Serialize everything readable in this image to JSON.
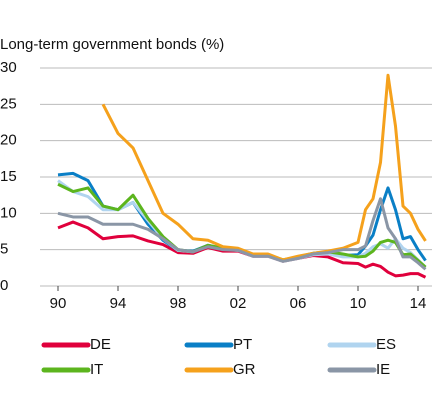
{
  "chart_data": {
    "type": "line",
    "title": "Long-term government bonds (%)",
    "x": [
      1990,
      1991,
      1992,
      1993,
      1994,
      1995,
      1996,
      1997,
      1998,
      1999,
      2000,
      2001,
      2002,
      2003,
      2004,
      2005,
      2006,
      2007,
      2008,
      2009,
      2010,
      2010.5,
      2011,
      2011.5,
      2012,
      2012.5,
      2013,
      2013.5,
      2014,
      2014.5
    ],
    "series": [
      {
        "name": "DE",
        "color": "#e0003c",
        "values": [
          8,
          8.8,
          8,
          6.5,
          6.8,
          6.9,
          6.2,
          5.7,
          4.6,
          4.5,
          5.3,
          4.8,
          4.8,
          4.1,
          4.1,
          3.4,
          3.8,
          4.2,
          4.0,
          3.2,
          3.1,
          2.6,
          3.0,
          2.7,
          1.9,
          1.4,
          1.5,
          1.7,
          1.7,
          1.2
        ]
      },
      {
        "name": "PT",
        "color": "#0a7fc6",
        "values": [
          15.3,
          15.5,
          14.5,
          11,
          10.5,
          11.5,
          8.5,
          6.3,
          4.9,
          4.8,
          5.6,
          5.2,
          5.0,
          4.2,
          4.2,
          3.5,
          4.0,
          4.4,
          4.5,
          4.2,
          4.3,
          5.5,
          7.0,
          10.5,
          13.5,
          10.5,
          6.5,
          6.8,
          5.0,
          3.5
        ]
      },
      {
        "name": "ES",
        "color": "#b0d4ef",
        "values": [
          14.5,
          13,
          12.3,
          10.5,
          10.5,
          11.5,
          9,
          6.5,
          4.9,
          4.7,
          5.5,
          5.1,
          4.9,
          4.1,
          4.1,
          3.4,
          3.8,
          4.3,
          4.4,
          4.0,
          4.0,
          4.5,
          5.4,
          5.8,
          5.2,
          6.5,
          5.2,
          4.6,
          3.6,
          2.6
        ]
      },
      {
        "name": "IT",
        "color": "#5cb51e",
        "values": [
          14,
          13,
          13.5,
          11,
          10.5,
          12.5,
          9.3,
          6.8,
          5.0,
          4.7,
          5.6,
          5.2,
          5.0,
          4.3,
          4.3,
          3.6,
          4.0,
          4.5,
          4.7,
          4.4,
          4.0,
          4.1,
          4.8,
          6.0,
          6.3,
          6.0,
          4.3,
          4.4,
          3.5,
          2.6
        ]
      },
      {
        "name": "GR",
        "color": "#f5a11c",
        "values": [
          null,
          null,
          null,
          25,
          21,
          19,
          14.5,
          10,
          8.5,
          6.5,
          6.3,
          5.4,
          5.2,
          4.4,
          4.4,
          3.6,
          4.1,
          4.5,
          4.8,
          5.2,
          6.0,
          10.5,
          12,
          17,
          29,
          22,
          11,
          10,
          7.8,
          6.2
        ]
      },
      {
        "name": "IE",
        "color": "#8a96a6",
        "values": [
          10,
          9.5,
          9.5,
          8.5,
          8.5,
          8.5,
          7.8,
          6.5,
          5.0,
          4.7,
          5.4,
          5.0,
          4.9,
          4.1,
          4.1,
          3.4,
          3.8,
          4.4,
          4.6,
          5.0,
          5.0,
          5.5,
          9.0,
          12,
          8,
          6.5,
          4.0,
          4.0,
          3.2,
          2.3
        ]
      }
    ],
    "xlim": [
      1990,
      2014.8
    ],
    "xticks": [
      {
        "value": 1990,
        "label": "90"
      },
      {
        "value": 1994,
        "label": "94"
      },
      {
        "value": 1998,
        "label": "98"
      },
      {
        "value": 2002,
        "label": "02"
      },
      {
        "value": 2006,
        "label": "06"
      },
      {
        "value": 2010,
        "label": "10"
      },
      {
        "value": 2014,
        "label": "14"
      }
    ],
    "ylim": [
      0,
      30
    ],
    "yticks": [
      0,
      5,
      10,
      15,
      20,
      25,
      30
    ],
    "grid": true
  }
}
